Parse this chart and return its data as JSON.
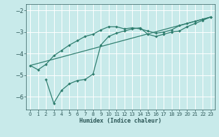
{
  "xlabel": "Humidex (Indice chaleur)",
  "bg_color": "#c8eaea",
  "grid_color": "#b0d8d8",
  "line_color": "#2e7d6e",
  "xlim": [
    -0.5,
    23.5
  ],
  "ylim": [
    -6.6,
    -1.7
  ],
  "xticks": [
    0,
    1,
    2,
    3,
    4,
    5,
    6,
    7,
    8,
    9,
    10,
    11,
    12,
    13,
    14,
    15,
    16,
    17,
    18,
    19,
    20,
    21,
    22,
    23
  ],
  "yticks": [
    -6,
    -5,
    -4,
    -3,
    -2
  ],
  "line1_x": [
    0,
    1,
    2,
    3,
    4,
    5,
    6,
    7,
    8,
    9,
    10,
    11,
    12,
    13,
    14,
    15,
    16,
    17,
    18,
    19,
    20,
    21,
    22,
    23
  ],
  "line1_y": [
    -4.55,
    -4.75,
    -4.5,
    -4.1,
    -3.85,
    -3.6,
    -3.4,
    -3.2,
    -3.1,
    -2.9,
    -2.75,
    -2.75,
    -2.85,
    -2.8,
    -2.85,
    -2.95,
    -3.05,
    -3.0,
    -2.9,
    -2.7,
    -2.6,
    -2.5,
    -2.4,
    -2.3
  ],
  "line2_x": [
    2,
    3,
    4,
    5,
    6,
    7,
    8,
    9,
    10,
    11,
    12,
    13,
    14,
    15,
    16,
    17,
    18,
    19,
    20,
    21,
    22,
    23
  ],
  "line2_y": [
    -5.2,
    -6.3,
    -5.7,
    -5.4,
    -5.25,
    -5.2,
    -4.95,
    -3.6,
    -3.2,
    -3.05,
    -2.95,
    -2.85,
    -2.8,
    -3.1,
    -3.2,
    -3.1,
    -3.0,
    -2.95,
    -2.75,
    -2.6,
    -2.45,
    -2.3
  ],
  "line3_x": [
    0,
    23
  ],
  "line3_y": [
    -4.55,
    -2.3
  ]
}
